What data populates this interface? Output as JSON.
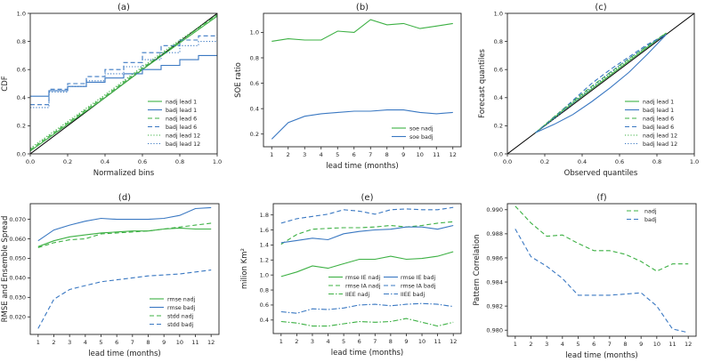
{
  "colors": {
    "green": "#3cb043",
    "blue": "#3a78c2",
    "black": "#000000"
  },
  "chart_data": [
    {
      "id": "a",
      "type": "line",
      "title": "(a)",
      "xlabel": "Normalized bins",
      "ylabel": "CDF",
      "xlim": [
        0,
        1
      ],
      "ylim": [
        0,
        1
      ],
      "xticks": [
        "0.0",
        "0.2",
        "0.4",
        "0.6",
        "0.8",
        "1.0"
      ],
      "yticks": [
        "0.0",
        "0.2",
        "0.4",
        "0.6",
        "0.8",
        "1.0"
      ],
      "legend": {
        "position": "lower-right",
        "entries": [
          "nadj lead 1",
          "badj lead 1",
          "nadj lead 6",
          "badj lead 6",
          "nadj lead 12",
          "badj lead 12"
        ]
      },
      "series": [
        {
          "name": "diagonal",
          "color": "black",
          "style": "solid",
          "legend": false,
          "x": [
            0,
            1
          ],
          "y": [
            0,
            1
          ]
        },
        {
          "name": "nadj lead 1",
          "color": "green",
          "style": "solid",
          "x": [
            0,
            0.2,
            0.4,
            0.6,
            0.8,
            1.0
          ],
          "y": [
            0.02,
            0.21,
            0.4,
            0.6,
            0.79,
            0.98
          ]
        },
        {
          "name": "badj lead 1",
          "color": "blue",
          "style": "solid",
          "step": true,
          "x": [
            0,
            0.1,
            0.2,
            0.3,
            0.4,
            0.5,
            0.6,
            0.7,
            0.8,
            0.9,
            1.0
          ],
          "y": [
            0.41,
            0.45,
            0.48,
            0.51,
            0.54,
            0.57,
            0.6,
            0.63,
            0.67,
            0.7,
            0.7
          ]
        },
        {
          "name": "nadj lead 6",
          "color": "green",
          "style": "dashed",
          "x": [
            0,
            0.2,
            0.4,
            0.6,
            0.8,
            1.0
          ],
          "y": [
            0.03,
            0.22,
            0.41,
            0.61,
            0.8,
            0.99
          ]
        },
        {
          "name": "badj lead 6",
          "color": "blue",
          "style": "dashed",
          "step": true,
          "x": [
            0,
            0.1,
            0.2,
            0.3,
            0.4,
            0.5,
            0.6,
            0.7,
            0.8,
            0.9,
            1.0
          ],
          "y": [
            0.35,
            0.46,
            0.5,
            0.55,
            0.6,
            0.65,
            0.72,
            0.77,
            0.81,
            0.84,
            0.85
          ]
        },
        {
          "name": "nadj lead 12",
          "color": "green",
          "style": "dotted",
          "x": [
            0,
            0.2,
            0.4,
            0.6,
            0.8,
            1.0
          ],
          "y": [
            0.04,
            0.23,
            0.42,
            0.62,
            0.81,
            0.99
          ]
        },
        {
          "name": "badj lead 12",
          "color": "blue",
          "style": "dotted",
          "step": true,
          "x": [
            0,
            0.1,
            0.2,
            0.3,
            0.4,
            0.5,
            0.6,
            0.7,
            0.8,
            0.9,
            1.0
          ],
          "y": [
            0.33,
            0.44,
            0.48,
            0.52,
            0.57,
            0.62,
            0.67,
            0.72,
            0.77,
            0.8,
            0.83
          ]
        }
      ]
    },
    {
      "id": "b",
      "type": "line",
      "title": "(b)",
      "xlabel": "lead time (months)",
      "ylabel": "SOE ratio",
      "xlim": [
        0.5,
        12.5
      ],
      "ylim": [
        0.1,
        1.15
      ],
      "xticks": [
        "1",
        "2",
        "3",
        "4",
        "5",
        "6",
        "7",
        "8",
        "9",
        "10",
        "11",
        "12"
      ],
      "yticks": [
        "0.2",
        "0.4",
        "0.6",
        "0.8",
        "1.0"
      ],
      "legend": {
        "position": "lower-right",
        "entries": [
          "soe nadj",
          "soe badj"
        ]
      },
      "series": [
        {
          "name": "soe nadj",
          "color": "green",
          "style": "solid",
          "x": [
            1,
            2,
            3,
            4,
            5,
            6,
            7,
            8,
            9,
            10,
            11,
            12
          ],
          "y": [
            0.93,
            0.95,
            0.94,
            0.94,
            1.01,
            1.0,
            1.1,
            1.06,
            1.07,
            1.03,
            1.05,
            1.07
          ]
        },
        {
          "name": "soe badj",
          "color": "blue",
          "style": "solid",
          "x": [
            1,
            2,
            3,
            4,
            5,
            6,
            7,
            8,
            9,
            10,
            11,
            12
          ],
          "y": [
            0.16,
            0.29,
            0.34,
            0.36,
            0.37,
            0.38,
            0.38,
            0.39,
            0.39,
            0.37,
            0.36,
            0.37
          ]
        }
      ]
    },
    {
      "id": "c",
      "type": "line",
      "title": "(c)",
      "xlabel": "Observed quantiles",
      "ylabel": "Forecast quantiles",
      "xlim": [
        0,
        1
      ],
      "ylim": [
        0,
        1
      ],
      "xticks": [
        "0.0",
        "0.2",
        "0.4",
        "0.6",
        "0.8",
        "1.0"
      ],
      "yticks": [
        "0.0",
        "0.2",
        "0.4",
        "0.6",
        "0.8",
        "1.0"
      ],
      "legend": {
        "position": "lower-right",
        "entries": [
          "nadj lead 1",
          "badj lead 1",
          "nadj lead 6",
          "badj lead 6",
          "nadj lead 12",
          "badj lead 12"
        ]
      },
      "series": [
        {
          "name": "diagonal",
          "color": "black",
          "style": "solid",
          "legend": false,
          "x": [
            0,
            1
          ],
          "y": [
            0,
            1
          ]
        },
        {
          "name": "nadj lead 1",
          "color": "green",
          "style": "solid",
          "x": [
            0.15,
            0.3,
            0.45,
            0.6,
            0.75,
            0.85
          ],
          "y": [
            0.15,
            0.31,
            0.46,
            0.61,
            0.76,
            0.86
          ]
        },
        {
          "name": "badj lead 1",
          "color": "blue",
          "style": "solid",
          "x": [
            0.15,
            0.25,
            0.35,
            0.45,
            0.55,
            0.65,
            0.75,
            0.85
          ],
          "y": [
            0.15,
            0.21,
            0.28,
            0.37,
            0.47,
            0.58,
            0.71,
            0.85
          ]
        },
        {
          "name": "nadj lead 6",
          "color": "green",
          "style": "dashed",
          "x": [
            0.15,
            0.3,
            0.45,
            0.6,
            0.75,
            0.85
          ],
          "y": [
            0.15,
            0.32,
            0.48,
            0.63,
            0.77,
            0.86
          ]
        },
        {
          "name": "badj lead 6",
          "color": "blue",
          "style": "dashed",
          "x": [
            0.15,
            0.25,
            0.35,
            0.45,
            0.55,
            0.65,
            0.75,
            0.85
          ],
          "y": [
            0.15,
            0.26,
            0.38,
            0.5,
            0.6,
            0.69,
            0.78,
            0.85
          ]
        },
        {
          "name": "nadj lead 12",
          "color": "green",
          "style": "dotted",
          "x": [
            0.15,
            0.3,
            0.45,
            0.6,
            0.75,
            0.85
          ],
          "y": [
            0.15,
            0.32,
            0.47,
            0.62,
            0.76,
            0.86
          ]
        },
        {
          "name": "badj lead 12",
          "color": "blue",
          "style": "dotted",
          "x": [
            0.15,
            0.25,
            0.35,
            0.45,
            0.55,
            0.65,
            0.75,
            0.85
          ],
          "y": [
            0.15,
            0.25,
            0.36,
            0.47,
            0.58,
            0.68,
            0.77,
            0.85
          ]
        }
      ]
    },
    {
      "id": "d",
      "type": "line",
      "title": "(d)",
      "xlabel": "lead time (months)",
      "ylabel": "RMSE and Ensemble Spread",
      "xlim": [
        0.5,
        12.5
      ],
      "ylim": [
        0.011,
        0.078
      ],
      "xticks": [
        "1",
        "2",
        "3",
        "4",
        "5",
        "6",
        "7",
        "8",
        "9",
        "10",
        "11",
        "12"
      ],
      "yticks": [
        "0.020",
        "0.030",
        "0.040",
        "0.050",
        "0.060",
        "0.070"
      ],
      "legend": {
        "position": "lower-right",
        "entries": [
          "rmse nadj",
          "rmse badj",
          "stdd nadj",
          "stdd badj"
        ]
      },
      "series": [
        {
          "name": "rmse nadj",
          "color": "green",
          "style": "solid",
          "x": [
            1,
            2,
            3,
            4,
            5,
            6,
            7,
            8,
            9,
            10,
            11,
            12
          ],
          "y": [
            0.056,
            0.059,
            0.061,
            0.062,
            0.063,
            0.0635,
            0.064,
            0.064,
            0.065,
            0.0655,
            0.065,
            0.065
          ]
        },
        {
          "name": "rmse badj",
          "color": "blue",
          "style": "solid",
          "x": [
            1,
            2,
            3,
            4,
            5,
            6,
            7,
            8,
            9,
            10,
            11,
            12
          ],
          "y": [
            0.059,
            0.0645,
            0.067,
            0.069,
            0.0705,
            0.07,
            0.07,
            0.07,
            0.0705,
            0.072,
            0.0755,
            0.076
          ]
        },
        {
          "name": "stdd nadj",
          "color": "green",
          "style": "dashed",
          "x": [
            1,
            2,
            3,
            4,
            5,
            6,
            7,
            8,
            9,
            10,
            11,
            12
          ],
          "y": [
            0.0555,
            0.058,
            0.0595,
            0.06,
            0.0625,
            0.063,
            0.0635,
            0.064,
            0.065,
            0.066,
            0.067,
            0.068
          ]
        },
        {
          "name": "stdd badj",
          "color": "blue",
          "style": "dashed",
          "x": [
            1,
            2,
            3,
            4,
            5,
            6,
            7,
            8,
            9,
            10,
            11,
            12
          ],
          "y": [
            0.014,
            0.029,
            0.034,
            0.036,
            0.038,
            0.039,
            0.04,
            0.041,
            0.0415,
            0.042,
            0.043,
            0.044
          ]
        }
      ]
    },
    {
      "id": "e",
      "type": "line",
      "title": "(e)",
      "xlabel": "lead time (months)",
      "ylabel": "milion Km²",
      "xlim": [
        0.5,
        12.5
      ],
      "ylim": [
        0.22,
        1.95
      ],
      "xticks": [
        "1",
        "2",
        "3",
        "4",
        "5",
        "6",
        "7",
        "8",
        "9",
        "10",
        "11",
        "12"
      ],
      "yticks": [
        "0.4",
        "0.6",
        "0.8",
        "1.0",
        "1.2",
        "1.4",
        "1.6",
        "1.8"
      ],
      "legend": {
        "position": "center",
        "entries": [
          "rmse IE nadj",
          "rmse IA nadj",
          "IIEE nadj",
          "rmse IE badj",
          "rmse IA badj",
          "IIEE badj"
        ]
      },
      "series": [
        {
          "name": "rmse IE nadj",
          "color": "green",
          "style": "solid",
          "x": [
            1,
            2,
            3,
            4,
            5,
            6,
            7,
            8,
            9,
            10,
            11,
            12
          ],
          "y": [
            0.98,
            1.04,
            1.12,
            1.09,
            1.15,
            1.21,
            1.21,
            1.25,
            1.21,
            1.22,
            1.25,
            1.31
          ]
        },
        {
          "name": "rmse IA nadj",
          "color": "green",
          "style": "dashed",
          "x": [
            1,
            2,
            3,
            4,
            5,
            6,
            7,
            8,
            9,
            10,
            11,
            12
          ],
          "y": [
            1.41,
            1.54,
            1.61,
            1.62,
            1.63,
            1.63,
            1.64,
            1.66,
            1.64,
            1.66,
            1.69,
            1.71
          ]
        },
        {
          "name": "IIEE nadj",
          "color": "green",
          "style": "dashdot",
          "x": [
            1,
            2,
            3,
            4,
            5,
            6,
            7,
            8,
            9,
            10,
            11,
            12
          ],
          "y": [
            0.38,
            0.36,
            0.32,
            0.32,
            0.35,
            0.38,
            0.37,
            0.38,
            0.42,
            0.37,
            0.32,
            0.37
          ]
        },
        {
          "name": "rmse IE badj",
          "color": "blue",
          "style": "solid",
          "x": [
            1,
            2,
            3,
            4,
            5,
            6,
            7,
            8,
            9,
            10,
            11,
            12
          ],
          "y": [
            1.43,
            1.46,
            1.49,
            1.47,
            1.55,
            1.58,
            1.6,
            1.61,
            1.64,
            1.64,
            1.61,
            1.66
          ]
        },
        {
          "name": "rmse IA badj",
          "color": "blue",
          "style": "dashed",
          "x": [
            1,
            2,
            3,
            4,
            5,
            6,
            7,
            8,
            9,
            10,
            11,
            12
          ],
          "y": [
            1.69,
            1.75,
            1.78,
            1.81,
            1.87,
            1.85,
            1.81,
            1.87,
            1.88,
            1.87,
            1.87,
            1.9
          ]
        },
        {
          "name": "IIEE badj",
          "color": "blue",
          "style": "dashdot",
          "x": [
            1,
            2,
            3,
            4,
            5,
            6,
            7,
            8,
            9,
            10,
            11,
            12
          ],
          "y": [
            0.51,
            0.49,
            0.55,
            0.54,
            0.56,
            0.6,
            0.61,
            0.59,
            0.61,
            0.62,
            0.61,
            0.58
          ]
        }
      ]
    },
    {
      "id": "f",
      "type": "line",
      "title": "(f)",
      "xlabel": "lead time (months)",
      "ylabel": "Pattern Correlation",
      "xlim": [
        0.5,
        12.5
      ],
      "ylim": [
        0.9795,
        0.9905
      ],
      "xticks": [
        "1",
        "2",
        "3",
        "4",
        "5",
        "6",
        "7",
        "8",
        "9",
        "10",
        "11",
        "12"
      ],
      "yticks": [
        "0.980",
        "0.982",
        "0.984",
        "0.986",
        "0.988",
        "0.990"
      ],
      "legend": {
        "position": "top-right",
        "entries": [
          "nadj",
          "badj"
        ]
      },
      "series": [
        {
          "name": "nadj",
          "color": "green",
          "style": "dashed",
          "x": [
            1,
            2,
            3,
            4,
            5,
            6,
            7,
            8,
            9,
            10,
            11,
            12
          ],
          "y": [
            0.9903,
            0.9889,
            0.9878,
            0.9879,
            0.9872,
            0.9866,
            0.9866,
            0.9863,
            0.9857,
            0.9849,
            0.9855,
            0.9855
          ]
        },
        {
          "name": "badj",
          "color": "blue",
          "style": "dashed",
          "x": [
            1,
            2,
            3,
            4,
            5,
            6,
            7,
            8,
            9,
            10,
            11,
            12
          ],
          "y": [
            0.9884,
            0.9861,
            0.9853,
            0.9843,
            0.9829,
            0.9829,
            0.9829,
            0.983,
            0.9831,
            0.982,
            0.9801,
            0.9798
          ]
        }
      ]
    }
  ]
}
